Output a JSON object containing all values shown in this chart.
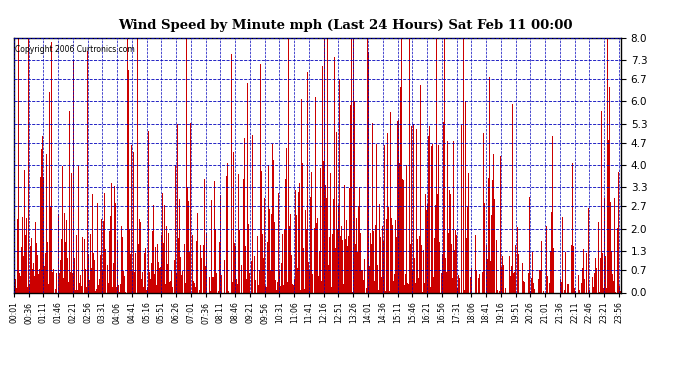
{
  "title": "Wind Speed by Minute mph (Last 24 Hours) Sat Feb 11 00:00",
  "copyright": "Copyright 2006 Curtronics.com",
  "yticks": [
    0.0,
    0.7,
    1.3,
    2.0,
    2.7,
    3.3,
    4.0,
    4.7,
    5.3,
    6.0,
    6.7,
    7.3,
    8.0
  ],
  "ylim": [
    0.0,
    8.0
  ],
  "bar_color": "#cc0000",
  "bg_color": "#ffffff",
  "plot_bg_color": "#ffffff",
  "grid_color": "#0000bb",
  "seed": 42,
  "n_minutes": 1440,
  "xtick_interval": 35
}
